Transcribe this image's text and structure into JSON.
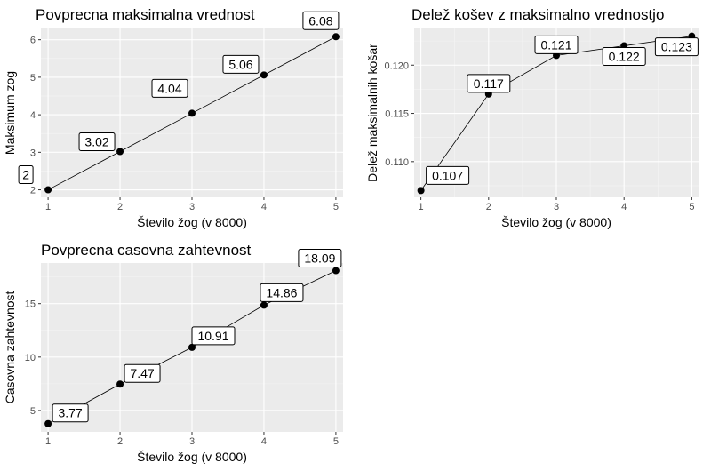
{
  "chart_data": [
    {
      "type": "line",
      "title": "Povprecna maksimalna vrednost",
      "xlabel": "Število žog (v 8000)",
      "ylabel": "Maksimum zog",
      "x": [
        1,
        2,
        3,
        4,
        5
      ],
      "values": [
        2,
        3.02,
        4.04,
        5.06,
        6.08
      ],
      "labels": [
        "2",
        "3.02",
        "4.04",
        "5.06",
        "6.08"
      ],
      "xticks": [
        "1",
        "2",
        "3",
        "4",
        "5"
      ],
      "yticks": [
        "2",
        "3",
        "4",
        "5",
        "6"
      ],
      "xlim": [
        0.9,
        5.1
      ],
      "ylim": [
        1.8,
        6.3
      ],
      "grid": true
    },
    {
      "type": "line",
      "title": "Delež košev z maksimalno vrednostjo",
      "xlabel": "Število žog (v 8000)",
      "ylabel": "Delež maksimalnih košar",
      "x": [
        1,
        2,
        3,
        4,
        5
      ],
      "values": [
        0.107,
        0.117,
        0.121,
        0.122,
        0.123
      ],
      "labels": [
        "0.107",
        "0.117",
        "0.121",
        "0.122",
        "0.123"
      ],
      "xticks": [
        "1",
        "2",
        "3",
        "4",
        "5"
      ],
      "yticks": [
        "0.110",
        "0.115",
        "0.120"
      ],
      "xlim": [
        0.9,
        5.1
      ],
      "ylim": [
        0.1063,
        0.1238
      ],
      "grid": true
    },
    {
      "type": "line",
      "title": "Povprecna casovna zahtevnost",
      "xlabel": "Število žog (v 8000)",
      "ylabel": "Casovna zahtevnost",
      "x": [
        1,
        2,
        3,
        4,
        5
      ],
      "values": [
        3.77,
        7.47,
        10.91,
        14.86,
        18.09
      ],
      "labels": [
        "3.77",
        "7.47",
        "10.91",
        "14.86",
        "18.09"
      ],
      "xticks": [
        "1",
        "2",
        "3",
        "4",
        "5"
      ],
      "yticks": [
        "5",
        "10",
        "15"
      ],
      "xlim": [
        0.9,
        5.1
      ],
      "ylim": [
        3.0,
        18.8
      ],
      "grid": true
    }
  ]
}
